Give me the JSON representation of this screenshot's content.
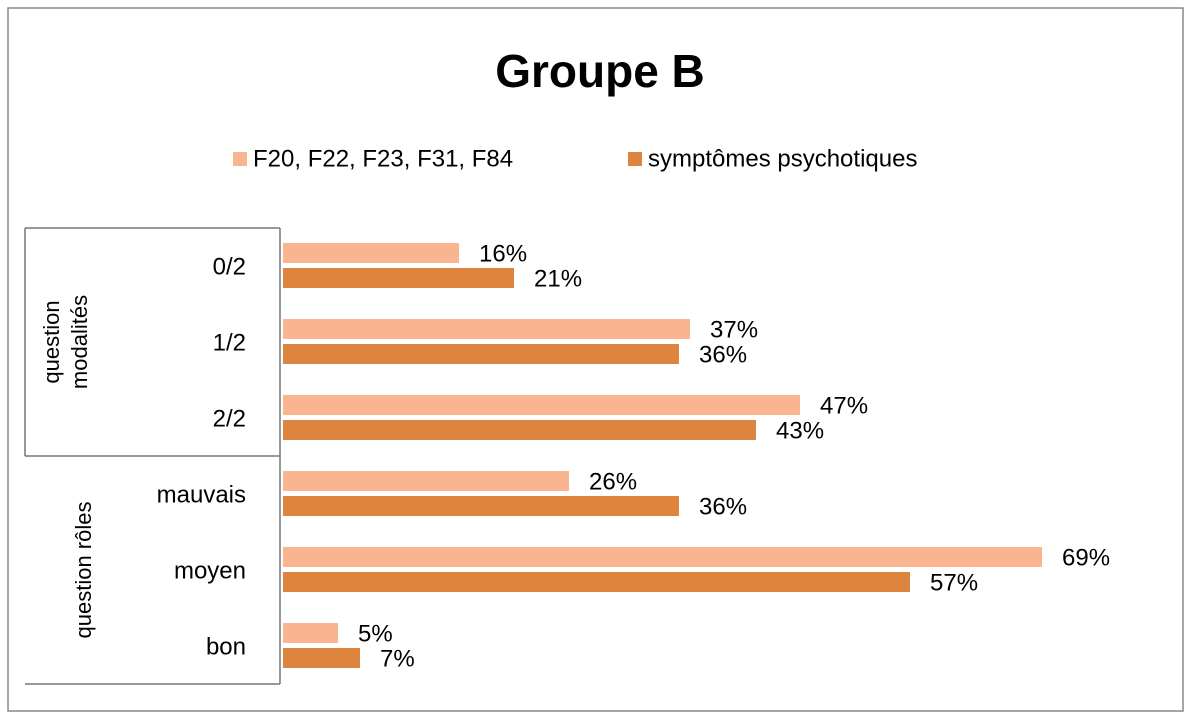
{
  "chart_data": {
    "type": "bar",
    "orientation": "horizontal",
    "title": "Groupe B",
    "groups": [
      {
        "name": "question modalités",
        "categories": [
          "0/2",
          "1/2",
          "2/2"
        ]
      },
      {
        "name": "question rôles",
        "categories": [
          "mauvais",
          "moyen",
          "bon"
        ]
      }
    ],
    "series": [
      {
        "name": "F20, F22, F23, F31, F84",
        "color": "#f9b490",
        "values": [
          16,
          37,
          47,
          26,
          69,
          5
        ],
        "value_labels": [
          "16%",
          "37%",
          "47%",
          "26%",
          "69%",
          "5%"
        ]
      },
      {
        "name": "symptômes psychotiques",
        "color": "#dd843f",
        "values": [
          21,
          36,
          43,
          36,
          57,
          7
        ],
        "value_labels": [
          "21%",
          "36%",
          "43%",
          "36%",
          "57%",
          "7%"
        ]
      }
    ],
    "legend": "top"
  }
}
